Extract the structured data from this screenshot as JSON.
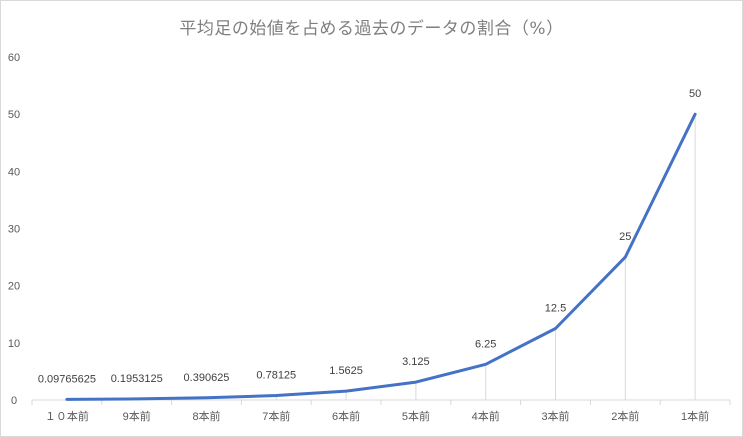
{
  "chart_data": {
    "type": "line",
    "title": "平均足の始値を占める過去のデータの割合（%）",
    "categories": [
      "１０本前",
      "9本前",
      "8本前",
      "7本前",
      "6本前",
      "5本前",
      "4本前",
      "3本前",
      "2本前",
      "1本前"
    ],
    "series": [
      {
        "values": [
          0.09765625,
          0.1953125,
          0.390625,
          0.78125,
          1.5625,
          3.125,
          6.25,
          12.5,
          25,
          50
        ],
        "labels": [
          "0.09765625",
          "0.1953125",
          "0.390625",
          "0.78125",
          "1.5625",
          "3.125",
          "6.25",
          "12.5",
          "25",
          "50"
        ],
        "color": "#4472c4"
      }
    ],
    "yticks": [
      "0",
      "10",
      "20",
      "30",
      "40",
      "50",
      "60"
    ],
    "ylim": [
      0,
      60
    ],
    "grid": "vertical drop lines",
    "legend": "none"
  }
}
